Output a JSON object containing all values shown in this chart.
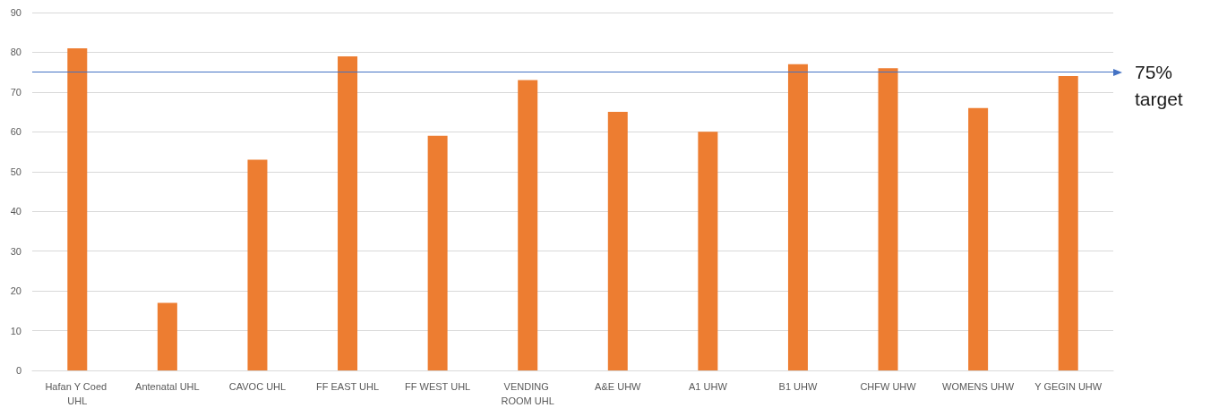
{
  "chart_data": {
    "type": "bar",
    "categories": [
      "Hafan Y Coed UHL",
      "Antenatal UHL",
      "CAVOC UHL",
      "FF EAST UHL",
      "FF WEST UHL",
      "VENDING ROOM UHL",
      "A&E UHW",
      "A1 UHW",
      "B1 UHW",
      "CHFW UHW",
      "WOMENS UHW",
      "Y GEGIN UHW"
    ],
    "values": [
      81,
      17,
      53,
      79,
      59,
      73,
      65,
      60,
      77,
      76,
      66,
      74
    ],
    "color": "#ed7d31",
    "ylim": [
      0,
      90
    ],
    "yticks": [
      0,
      10,
      20,
      30,
      40,
      50,
      60,
      70,
      80,
      90
    ],
    "grid": "y",
    "ref_lines": [
      {
        "axis": "y",
        "value": 75,
        "label": "75% target",
        "color": "#4472c4"
      }
    ]
  }
}
